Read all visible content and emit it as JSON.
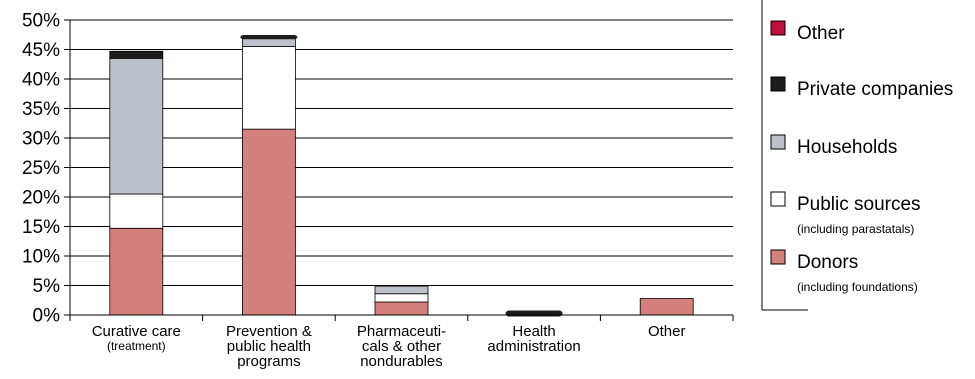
{
  "chart_data": {
    "type": "bar",
    "stacked": true,
    "ylim": [
      0,
      50
    ],
    "ytick_step": 5,
    "ytick_suffix": "%",
    "grid": true,
    "legend_position": "right",
    "categories": [
      {
        "lines": [
          "Curative care"
        ],
        "sub": "(treatment)"
      },
      {
        "lines": [
          "Prevention &",
          "public health",
          "programs"
        ],
        "sub": ""
      },
      {
        "lines": [
          "Pharmaceuti-",
          "cals & other",
          "nondurables"
        ],
        "sub": ""
      },
      {
        "lines": [
          "Health",
          "administration"
        ],
        "sub": ""
      },
      {
        "lines": [
          "Other"
        ],
        "sub": ""
      }
    ],
    "series": [
      {
        "name": "Donors",
        "sub": "(including foundations)",
        "color": "#d4817e",
        "values": [
          14.7,
          31.5,
          2.2,
          0.0,
          2.8
        ]
      },
      {
        "name": "Public sources",
        "sub": "(including parastatals)",
        "color": "#ffffff",
        "values": [
          5.8,
          14.0,
          1.4,
          0.0,
          0.0
        ]
      },
      {
        "name": "Households",
        "sub": "",
        "color": "#bcc0c8",
        "values": [
          23.0,
          1.5,
          1.3,
          0.0,
          0.0
        ]
      },
      {
        "name": "Private companies",
        "sub": "",
        "color": "#1c1c1c",
        "values": [
          1.2,
          0.2,
          0.0,
          0.5,
          0.0
        ]
      },
      {
        "name": "Other",
        "sub": "",
        "color": "#c0103a",
        "values": [
          0.0,
          0.0,
          0.0,
          0.0,
          0.0
        ]
      }
    ],
    "legend_order": [
      4,
      3,
      2,
      1,
      0
    ]
  }
}
